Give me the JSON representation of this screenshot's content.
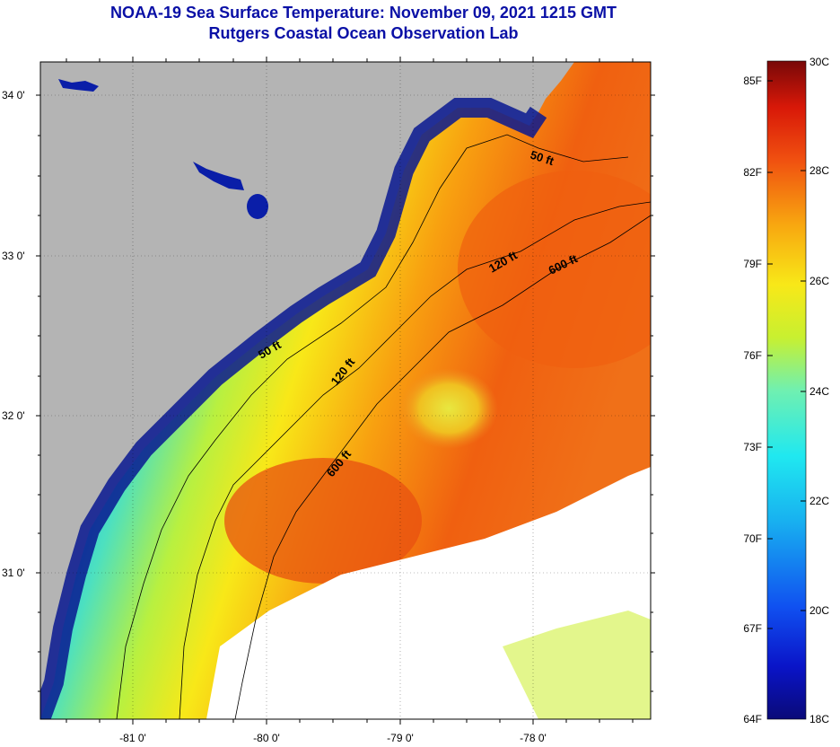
{
  "title": {
    "line1": "NOAA-19 Sea Surface Temperature:  November 09, 2021 1215 GMT",
    "line2": "Rutgers Coastal Ocean Observation Lab"
  },
  "map": {
    "lat_labels": [
      "34 0'",
      "33 0'",
      "32 0'",
      "31 0'"
    ],
    "lon_labels": [
      "-81 0'",
      "-80 0'",
      "-79 0'",
      "-78 0'"
    ],
    "contour_labels": [
      "50 ft",
      "120 ft",
      "600 ft",
      "50 ft",
      "120 ft",
      "600 ft"
    ],
    "colors": {
      "land": "#b4b4b4",
      "nodata": "#ffffff"
    }
  },
  "colorbar": {
    "fahrenheit_labels": [
      "85F",
      "82F",
      "79F",
      "76F",
      "73F",
      "70F",
      "67F",
      "64F"
    ],
    "celsius_labels": [
      "30C",
      "28C",
      "26C",
      "24C",
      "22C",
      "20C",
      "18C"
    ],
    "range_c": [
      18,
      30
    ],
    "range_f": [
      64,
      85
    ]
  }
}
